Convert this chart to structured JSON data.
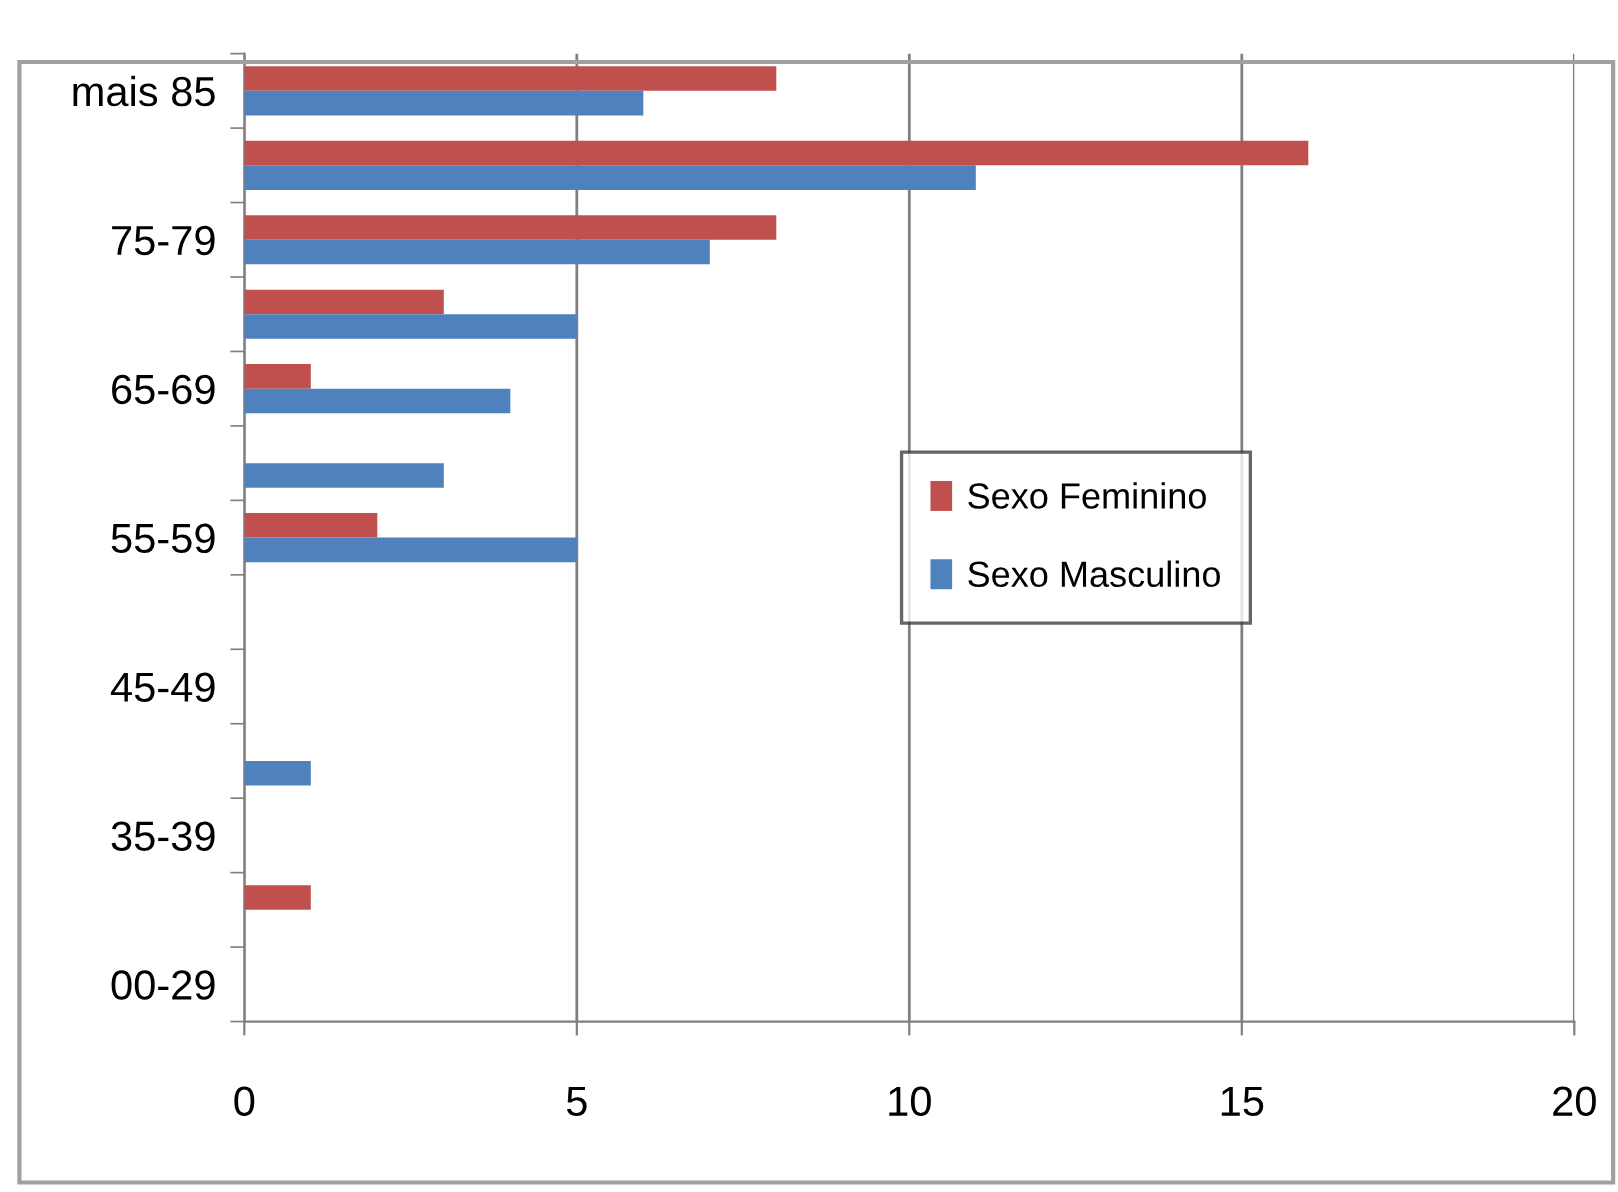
{
  "chart_data": {
    "type": "bar",
    "orientation": "horizontal",
    "categories": [
      "mais 85",
      null,
      "75-79",
      null,
      "65-69",
      null,
      "55-59",
      null,
      "45-49",
      null,
      "35-39",
      null,
      "00-29"
    ],
    "series": [
      {
        "name": "Sexo Feminino",
        "color": "#c0504d",
        "values": [
          8,
          16,
          8,
          3,
          1,
          0,
          2,
          0,
          0,
          0,
          0,
          1,
          0
        ]
      },
      {
        "name": "Sexo Masculino",
        "color": "#4f81bd",
        "values": [
          6,
          11,
          7,
          5,
          4,
          3,
          5,
          0,
          0,
          1,
          0,
          0,
          0
        ]
      }
    ],
    "xlim": [
      0,
      20
    ],
    "xticks": [
      0,
      5,
      10,
      15,
      20
    ],
    "grid": "x",
    "legend": "right"
  }
}
